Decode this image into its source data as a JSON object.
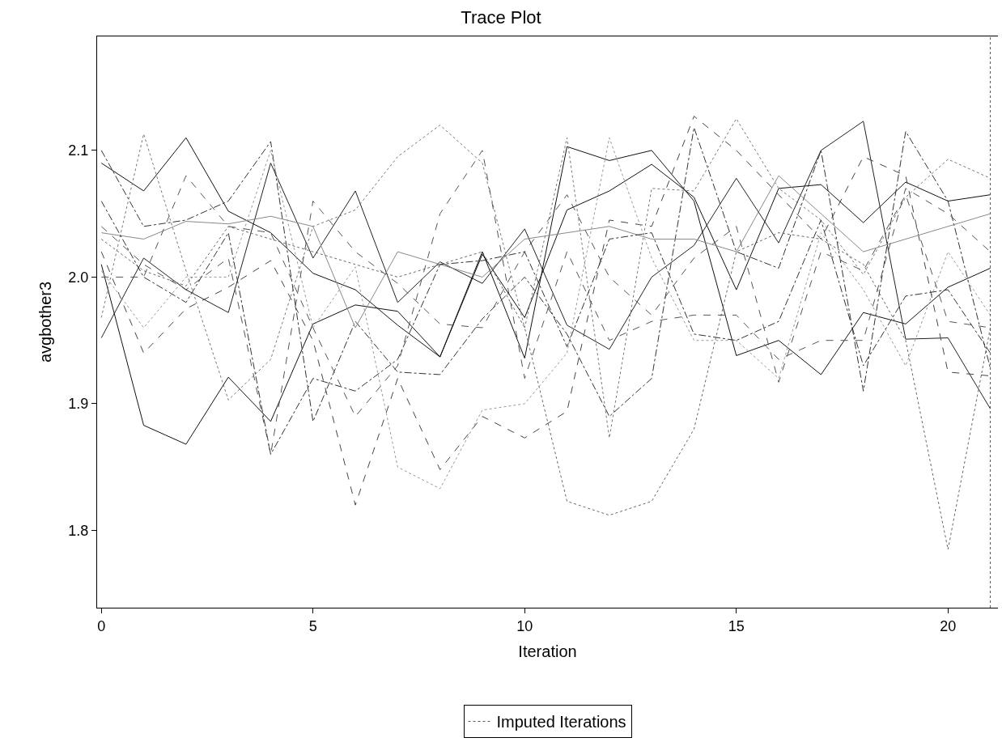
{
  "chart_data": {
    "type": "line",
    "title": "Trace Plot",
    "xlabel": "Iteration",
    "ylabel": "avgbother3",
    "x": [
      0,
      1,
      2,
      3,
      4,
      5,
      6,
      7,
      8,
      9,
      10,
      11,
      12,
      13,
      14,
      15,
      16,
      17,
      18,
      19,
      20,
      21
    ],
    "xlim": [
      -0.1,
      21.18
    ],
    "xticks": [
      0,
      5,
      10,
      15,
      20
    ],
    "ylim": [
      1.739,
      2.19
    ],
    "yticks": [
      {
        "value": 1.8,
        "label": "1.8"
      },
      {
        "value": 1.9,
        "label": "1.9"
      },
      {
        "value": 2.0,
        "label": "2.0"
      },
      {
        "value": 2.1,
        "label": "2.1"
      }
    ],
    "legend": "bottom",
    "marker": "none",
    "ref_lines": [
      {
        "axis": "x",
        "value": 21,
        "label": "Imputed Iterations",
        "color": "#555555",
        "line_style": "dotted"
      }
    ],
    "series": [
      {
        "color": "#111111",
        "line_style": "solid",
        "values": [
          2.09,
          2.068,
          2.11,
          2.052,
          2.035,
          2.003,
          1.99,
          1.962,
          1.937,
          2.018,
          1.968,
          2.053,
          2.068,
          2.089,
          2.063,
          1.99,
          2.07,
          2.073,
          2.043,
          2.075,
          2.06,
          2.065
        ]
      },
      {
        "color": "#111111",
        "line_style": "solid",
        "values": [
          2.01,
          1.883,
          1.868,
          1.921,
          1.886,
          1.963,
          1.978,
          1.973,
          1.937,
          2.02,
          1.936,
          2.103,
          2.092,
          2.1,
          2.06,
          1.938,
          1.95,
          1.923,
          1.972,
          1.963,
          1.992,
          2.007
        ]
      },
      {
        "color": "#222222",
        "line_style": "solid",
        "values": [
          1.952,
          2.015,
          1.99,
          1.972,
          2.09,
          2.015,
          2.068,
          1.98,
          2.012,
          1.995,
          2.038,
          1.962,
          1.943,
          2.0,
          2.025,
          2.078,
          2.027,
          2.1,
          2.123,
          1.951,
          1.952,
          1.896
        ]
      },
      {
        "color": "#666666",
        "line_style": "dotted",
        "values": [
          2.03,
          2.005,
          1.993,
          2.04,
          2.03,
          2.02,
          2.01,
          2.0,
          2.01,
          2.02,
          1.96,
          1.823,
          1.812,
          1.823,
          1.88,
          2.02,
          2.035,
          2.03,
          2.01,
          1.95,
          1.785,
          1.96
        ]
      },
      {
        "color": "#333333",
        "line_style": "dashdot",
        "values": [
          2.1,
          2.04,
          2.045,
          2.06,
          2.107,
          1.886,
          1.965,
          1.925,
          1.923,
          1.967,
          2.0,
          1.955,
          1.89,
          1.92,
          2.118,
          2.02,
          2.007,
          2.1,
          1.91,
          2.115,
          2.06,
          1.928
        ]
      },
      {
        "color": "#444444",
        "line_style": "dashed",
        "values": [
          2.02,
          1.94,
          1.975,
          1.992,
          2.013,
          1.95,
          1.82,
          1.92,
          1.848,
          1.89,
          1.873,
          1.894,
          2.045,
          2.04,
          2.127,
          2.1,
          2.065,
          2.03,
          2.095,
          2.08,
          1.925,
          1.922
        ]
      },
      {
        "color": "#777777",
        "line_style": "dotted",
        "values": [
          1.968,
          2.113,
          2.005,
          1.903,
          1.935,
          2.04,
          2.053,
          2.095,
          2.12,
          2.09,
          1.96,
          2.11,
          1.873,
          2.07,
          2.068,
          2.125,
          2.07,
          2.045,
          2.002,
          2.063,
          2.093,
          2.078
        ]
      },
      {
        "color": "#888888",
        "line_style": "solid",
        "values": [
          2.035,
          2.03,
          2.044,
          2.042,
          2.048,
          2.04,
          1.96,
          2.02,
          2.01,
          2.0,
          2.03,
          2.035,
          2.04,
          2.03,
          2.03,
          2.02,
          2.08,
          2.05,
          2.02,
          2.03,
          2.04,
          2.05
        ]
      },
      {
        "color": "#555555",
        "line_style": "dashed",
        "values": [
          2.0,
          2.0,
          2.08,
          2.04,
          2.035,
          1.96,
          1.89,
          1.93,
          2.05,
          2.1,
          1.92,
          2.02,
          1.95,
          1.965,
          1.97,
          1.97,
          1.935,
          1.95,
          1.95,
          2.07,
          2.05,
          2.02
        ]
      },
      {
        "color": "#999999",
        "line_style": "dotted",
        "values": [
          2.005,
          1.96,
          2.0,
          2.0,
          2.1,
          1.96,
          2.008,
          1.85,
          1.833,
          1.895,
          1.9,
          1.94,
          2.11,
          2.015,
          1.95,
          1.95,
          1.92,
          2.035,
          1.99,
          1.93,
          2.02,
          1.97
        ]
      },
      {
        "color": "#333333",
        "line_style": "dashdot",
        "values": [
          2.06,
          2.0,
          1.98,
          2.035,
          1.86,
          1.92,
          1.91,
          1.935,
          2.01,
          2.013,
          2.02,
          1.945,
          2.03,
          2.035,
          1.955,
          1.95,
          1.965,
          2.045,
          1.93,
          1.985,
          1.99,
          1.94
        ]
      },
      {
        "color": "#555555",
        "line_style": "dashed",
        "values": [
          2.04,
          2.01,
          1.99,
          2.015,
          1.86,
          2.06,
          2.02,
          1.995,
          1.963,
          1.96,
          2.02,
          2.065,
          2.0,
          1.97,
          2.015,
          2.04,
          1.917,
          2.02,
          2.005,
          2.065,
          1.965,
          1.96
        ]
      }
    ]
  }
}
